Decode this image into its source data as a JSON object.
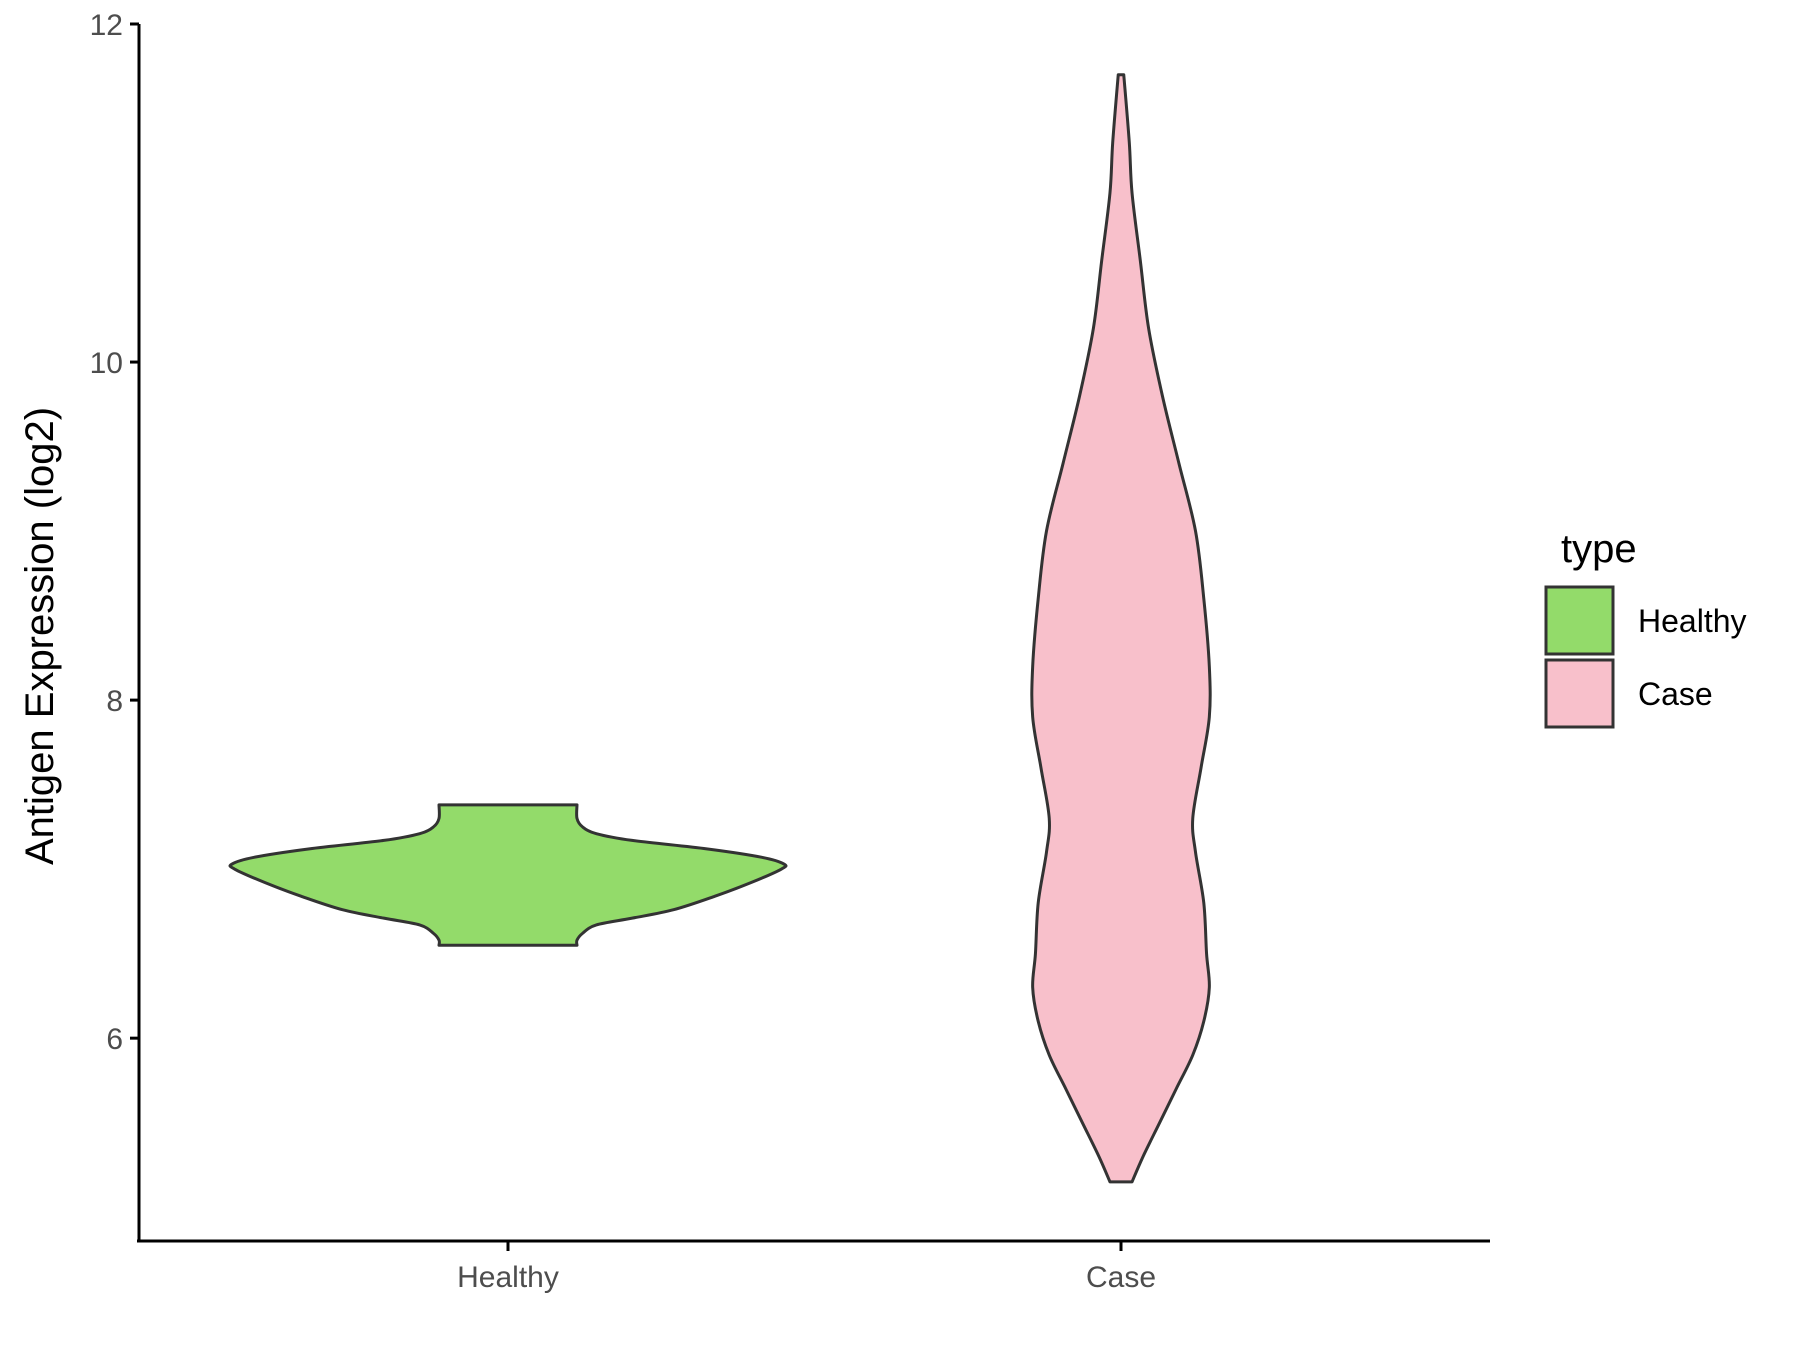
{
  "chart_data": {
    "type": "violin",
    "title": "",
    "xlabel": "",
    "ylabel": "Antigen Expression (log2)",
    "ylim": [
      4.8,
      12.0
    ],
    "y_ticks": [
      6,
      8,
      10,
      12
    ],
    "grid": false,
    "legend_position": "right",
    "legend_title": "type",
    "categories": [
      "Healthy",
      "Case"
    ],
    "series": [
      {
        "name": "Healthy",
        "color": "#93DB6A",
        "min": 6.55,
        "max": 7.38,
        "density": [
          [
            6.55,
            0.25
          ],
          [
            6.58,
            0.25
          ],
          [
            6.62,
            0.27
          ],
          [
            6.67,
            0.32
          ],
          [
            6.71,
            0.45
          ],
          [
            6.76,
            0.6
          ],
          [
            6.84,
            0.75
          ],
          [
            6.92,
            0.88
          ],
          [
            7.0,
            0.99
          ],
          [
            7.03,
            1.0
          ],
          [
            7.07,
            0.92
          ],
          [
            7.12,
            0.72
          ],
          [
            7.17,
            0.45
          ],
          [
            7.21,
            0.32
          ],
          [
            7.25,
            0.27
          ],
          [
            7.3,
            0.25
          ],
          [
            7.38,
            0.25
          ]
        ]
      },
      {
        "name": "Case",
        "color": "#F8C0CB",
        "min": 5.15,
        "max": 11.7,
        "density": [
          [
            5.15,
            0.04
          ],
          [
            5.3,
            0.08
          ],
          [
            5.5,
            0.14
          ],
          [
            5.7,
            0.2
          ],
          [
            5.9,
            0.26
          ],
          [
            6.1,
            0.3
          ],
          [
            6.3,
            0.32
          ],
          [
            6.5,
            0.31
          ],
          [
            6.8,
            0.3
          ],
          [
            7.1,
            0.27
          ],
          [
            7.3,
            0.26
          ],
          [
            7.6,
            0.29
          ],
          [
            7.9,
            0.32
          ],
          [
            8.2,
            0.32
          ],
          [
            8.6,
            0.3
          ],
          [
            9.0,
            0.27
          ],
          [
            9.4,
            0.21
          ],
          [
            9.8,
            0.15
          ],
          [
            10.2,
            0.1
          ],
          [
            10.6,
            0.07
          ],
          [
            11.0,
            0.04
          ],
          [
            11.3,
            0.03
          ],
          [
            11.7,
            0.01
          ]
        ]
      }
    ]
  }
}
